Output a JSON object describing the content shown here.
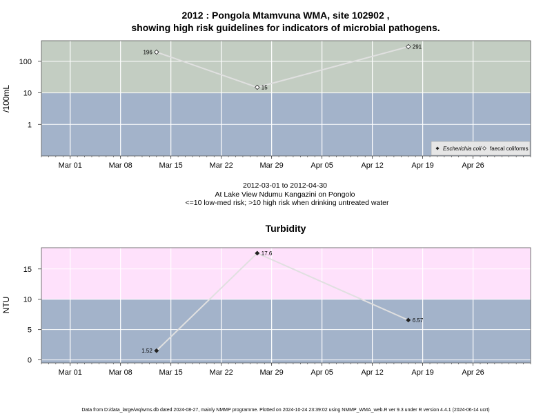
{
  "colors": {
    "high_risk": "#c3cdc2",
    "low_risk": "#a3b3ca",
    "turb_high": "#fee1fb",
    "turb_low": "#a3b3ca",
    "grid": "#ffffff",
    "line": "#e0e0e0"
  },
  "chart_data": [
    {
      "type": "line",
      "title_line1": "2012 : Pongola Mtamvuna WMA, site 102902 ,",
      "title_line2": "showing high risk guidelines for indicators of microbial pathogens.",
      "ylabel": "/100mL",
      "y_scale": "log",
      "ylim": [
        0.1,
        450
      ],
      "y_ticks": [
        1,
        10,
        100
      ],
      "y_tick_labels": [
        "1",
        "10",
        "100"
      ],
      "threshold": 10,
      "x_ticks": [
        "Mar 01",
        "Mar 08",
        "Mar 15",
        "Mar 22",
        "Mar 29",
        "Apr 05",
        "Apr 12",
        "Apr 19",
        "Apr 26"
      ],
      "x_tick_dates": [
        "2012-03-01",
        "2012-03-08",
        "2012-03-15",
        "2012-03-22",
        "2012-03-29",
        "2012-04-05",
        "2012-04-12",
        "2012-04-19",
        "2012-04-26"
      ],
      "xlim": [
        "2012-02-26",
        "2012-05-04"
      ],
      "grid": true,
      "legend_position": "bottom-right",
      "series": [
        {
          "name": "Escherichia coli",
          "marker": "filled-diamond",
          "points": []
        },
        {
          "name": "faecal coliforms",
          "marker": "open-diamond",
          "points": [
            {
              "date": "2012-03-13",
              "value": 196,
              "label": "196"
            },
            {
              "date": "2012-03-27",
              "value": 15,
              "label": "15"
            },
            {
              "date": "2012-04-17",
              "value": 291,
              "label": "291"
            }
          ]
        }
      ],
      "annotation_lines": [
        "2012-03-01 to 2012-04-30",
        "At Lake View Ndumu Kangazini on Pongolo",
        "<=10 low-med risk; >10 high risk when drinking untreated water"
      ]
    },
    {
      "type": "line",
      "title": "Turbidity",
      "ylabel": "NTU",
      "ylim": [
        -0.5,
        18.5
      ],
      "y_ticks": [
        0,
        5,
        10,
        15
      ],
      "y_tick_labels": [
        "0",
        "5",
        "10",
        "15"
      ],
      "threshold": 10,
      "x_ticks": [
        "Mar 01",
        "Mar 08",
        "Mar 15",
        "Mar 22",
        "Mar 29",
        "Apr 05",
        "Apr 12",
        "Apr 19",
        "Apr 26"
      ],
      "x_tick_dates": [
        "2012-03-01",
        "2012-03-08",
        "2012-03-15",
        "2012-03-22",
        "2012-03-29",
        "2012-04-05",
        "2012-04-12",
        "2012-04-19",
        "2012-04-26"
      ],
      "xlim": [
        "2012-02-26",
        "2012-05-04"
      ],
      "grid": true,
      "series": [
        {
          "marker": "filled-diamond",
          "points": [
            {
              "date": "2012-03-13",
              "value": 1.52,
              "label": "1.52"
            },
            {
              "date": "2012-03-27",
              "value": 17.6,
              "label": "17.6"
            },
            {
              "date": "2012-04-17",
              "value": 6.57,
              "label": "6.57"
            }
          ]
        }
      ]
    }
  ],
  "footer": "Data from D:/data_large/wq/wms.db dated 2024-08-27, mainly NMMP programme. Plotted on 2024-10-24 23:39:02 using NMMP_WMA_web.R ver 9.3 under R version 4.4.1 (2024-06-14 ucrt)"
}
